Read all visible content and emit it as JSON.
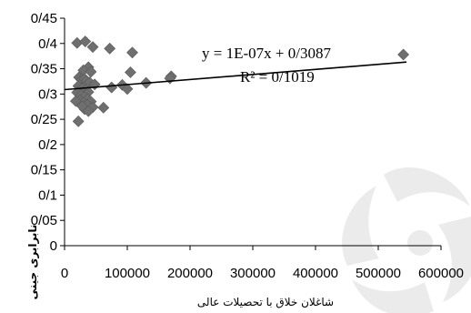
{
  "chart_data": {
    "type": "scatter",
    "xlabel": "شاغلان خلاق با تحصیلات عالی",
    "ylabel": "نابرابری جینی",
    "xlim": [
      0,
      600000
    ],
    "ylim": [
      0,
      0.45
    ],
    "x_ticks": [
      "0",
      "100000",
      "200000",
      "300000",
      "400000",
      "500000",
      "600000"
    ],
    "y_ticks": [
      "0",
      "0/05",
      "0/1",
      "0/15",
      "0/2",
      "0/25",
      "0/3",
      "0/35",
      "0/4",
      "0/45"
    ],
    "grid": false,
    "trendline": {
      "type": "linear",
      "slope": 1e-07,
      "intercept": 0.3087,
      "equation": "y = 1E-07x + 0/3087",
      "r_squared": "R² = 0/1019"
    },
    "series": [
      {
        "color": "#6f6f6f",
        "points": [
          [
            20000,
            0.401
          ],
          [
            33000,
            0.404
          ],
          [
            45000,
            0.393
          ],
          [
            72000,
            0.39
          ],
          [
            108000,
            0.382
          ],
          [
            540000,
            0.378
          ],
          [
            38000,
            0.353
          ],
          [
            30000,
            0.347
          ],
          [
            42000,
            0.344
          ],
          [
            105000,
            0.343
          ],
          [
            23000,
            0.333
          ],
          [
            27000,
            0.328
          ],
          [
            32000,
            0.33
          ],
          [
            35000,
            0.326
          ],
          [
            40000,
            0.323
          ],
          [
            48000,
            0.319
          ],
          [
            170000,
            0.335
          ],
          [
            168000,
            0.331
          ],
          [
            130000,
            0.322
          ],
          [
            92000,
            0.318
          ],
          [
            100000,
            0.31
          ],
          [
            75000,
            0.313
          ],
          [
            22000,
            0.316
          ],
          [
            28000,
            0.311
          ],
          [
            34000,
            0.309
          ],
          [
            38000,
            0.304
          ],
          [
            20000,
            0.303
          ],
          [
            26000,
            0.298
          ],
          [
            31000,
            0.294
          ],
          [
            37000,
            0.29
          ],
          [
            42000,
            0.285
          ],
          [
            24000,
            0.288
          ],
          [
            30000,
            0.283
          ],
          [
            36000,
            0.279
          ],
          [
            18000,
            0.286
          ],
          [
            45000,
            0.274
          ],
          [
            32000,
            0.27
          ],
          [
            38000,
            0.266
          ],
          [
            62000,
            0.273
          ],
          [
            28000,
            0.276
          ],
          [
            22000,
            0.246
          ]
        ]
      }
    ]
  }
}
